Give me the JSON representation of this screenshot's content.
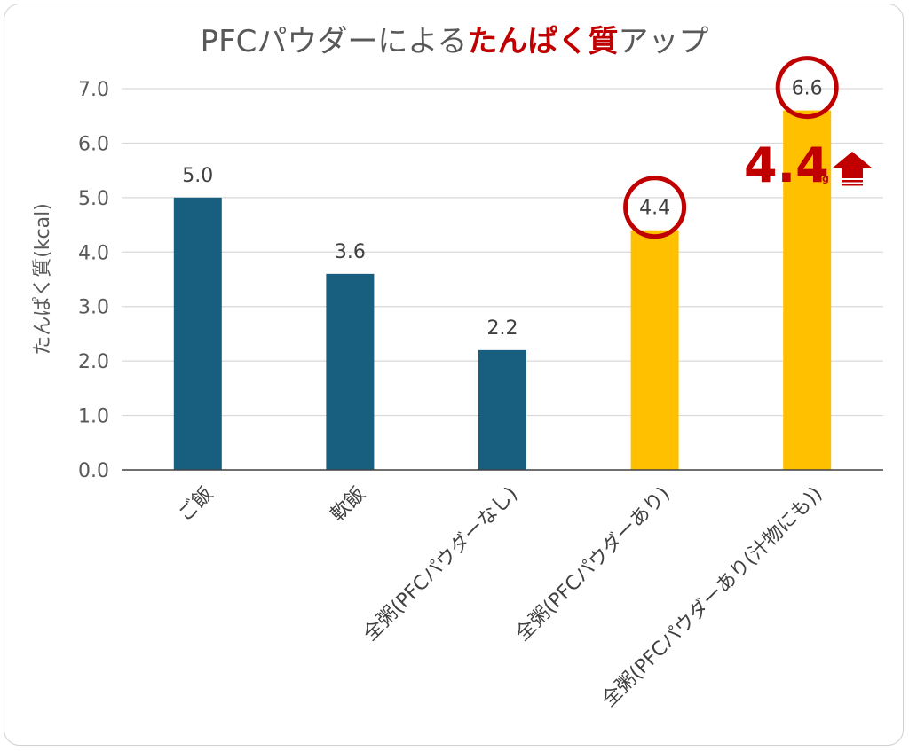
{
  "chart_data": {
    "type": "bar",
    "title": {
      "prefix": "PFCパウダーによる",
      "highlight": "たんぱく質",
      "suffix": "アップ"
    },
    "ylabel": "たんぱく質(kcal)",
    "xlabel": "",
    "ylim": [
      0,
      7
    ],
    "yticks": [
      "0.0",
      "1.0",
      "2.0",
      "3.0",
      "4.0",
      "5.0",
      "6.0",
      "7.0"
    ],
    "grid": true,
    "categories": [
      "ご飯",
      "軟飯",
      "全粥(PFCパウダーなし)",
      "全粥(PFCパウダーあり)",
      "全粥(PFCパウダーあり(汁物にも))"
    ],
    "values": [
      5.0,
      3.6,
      2.2,
      4.4,
      6.6
    ],
    "value_labels": [
      "5.0",
      "3.6",
      "2.2",
      "4.4",
      "6.6"
    ],
    "bar_colors": [
      "#175e7f",
      "#175e7f",
      "#175e7f",
      "#ffc000",
      "#ffc000"
    ],
    "circled_bars": [
      3,
      4
    ],
    "annotation": {
      "text": "4.4",
      "unit": "g",
      "arrow": "up-arrow-icon"
    },
    "colors": {
      "title": "#595959",
      "highlight": "#c00000",
      "circle": "#c00000",
      "grid": "#d9d9d9",
      "axis": "#404040"
    }
  }
}
